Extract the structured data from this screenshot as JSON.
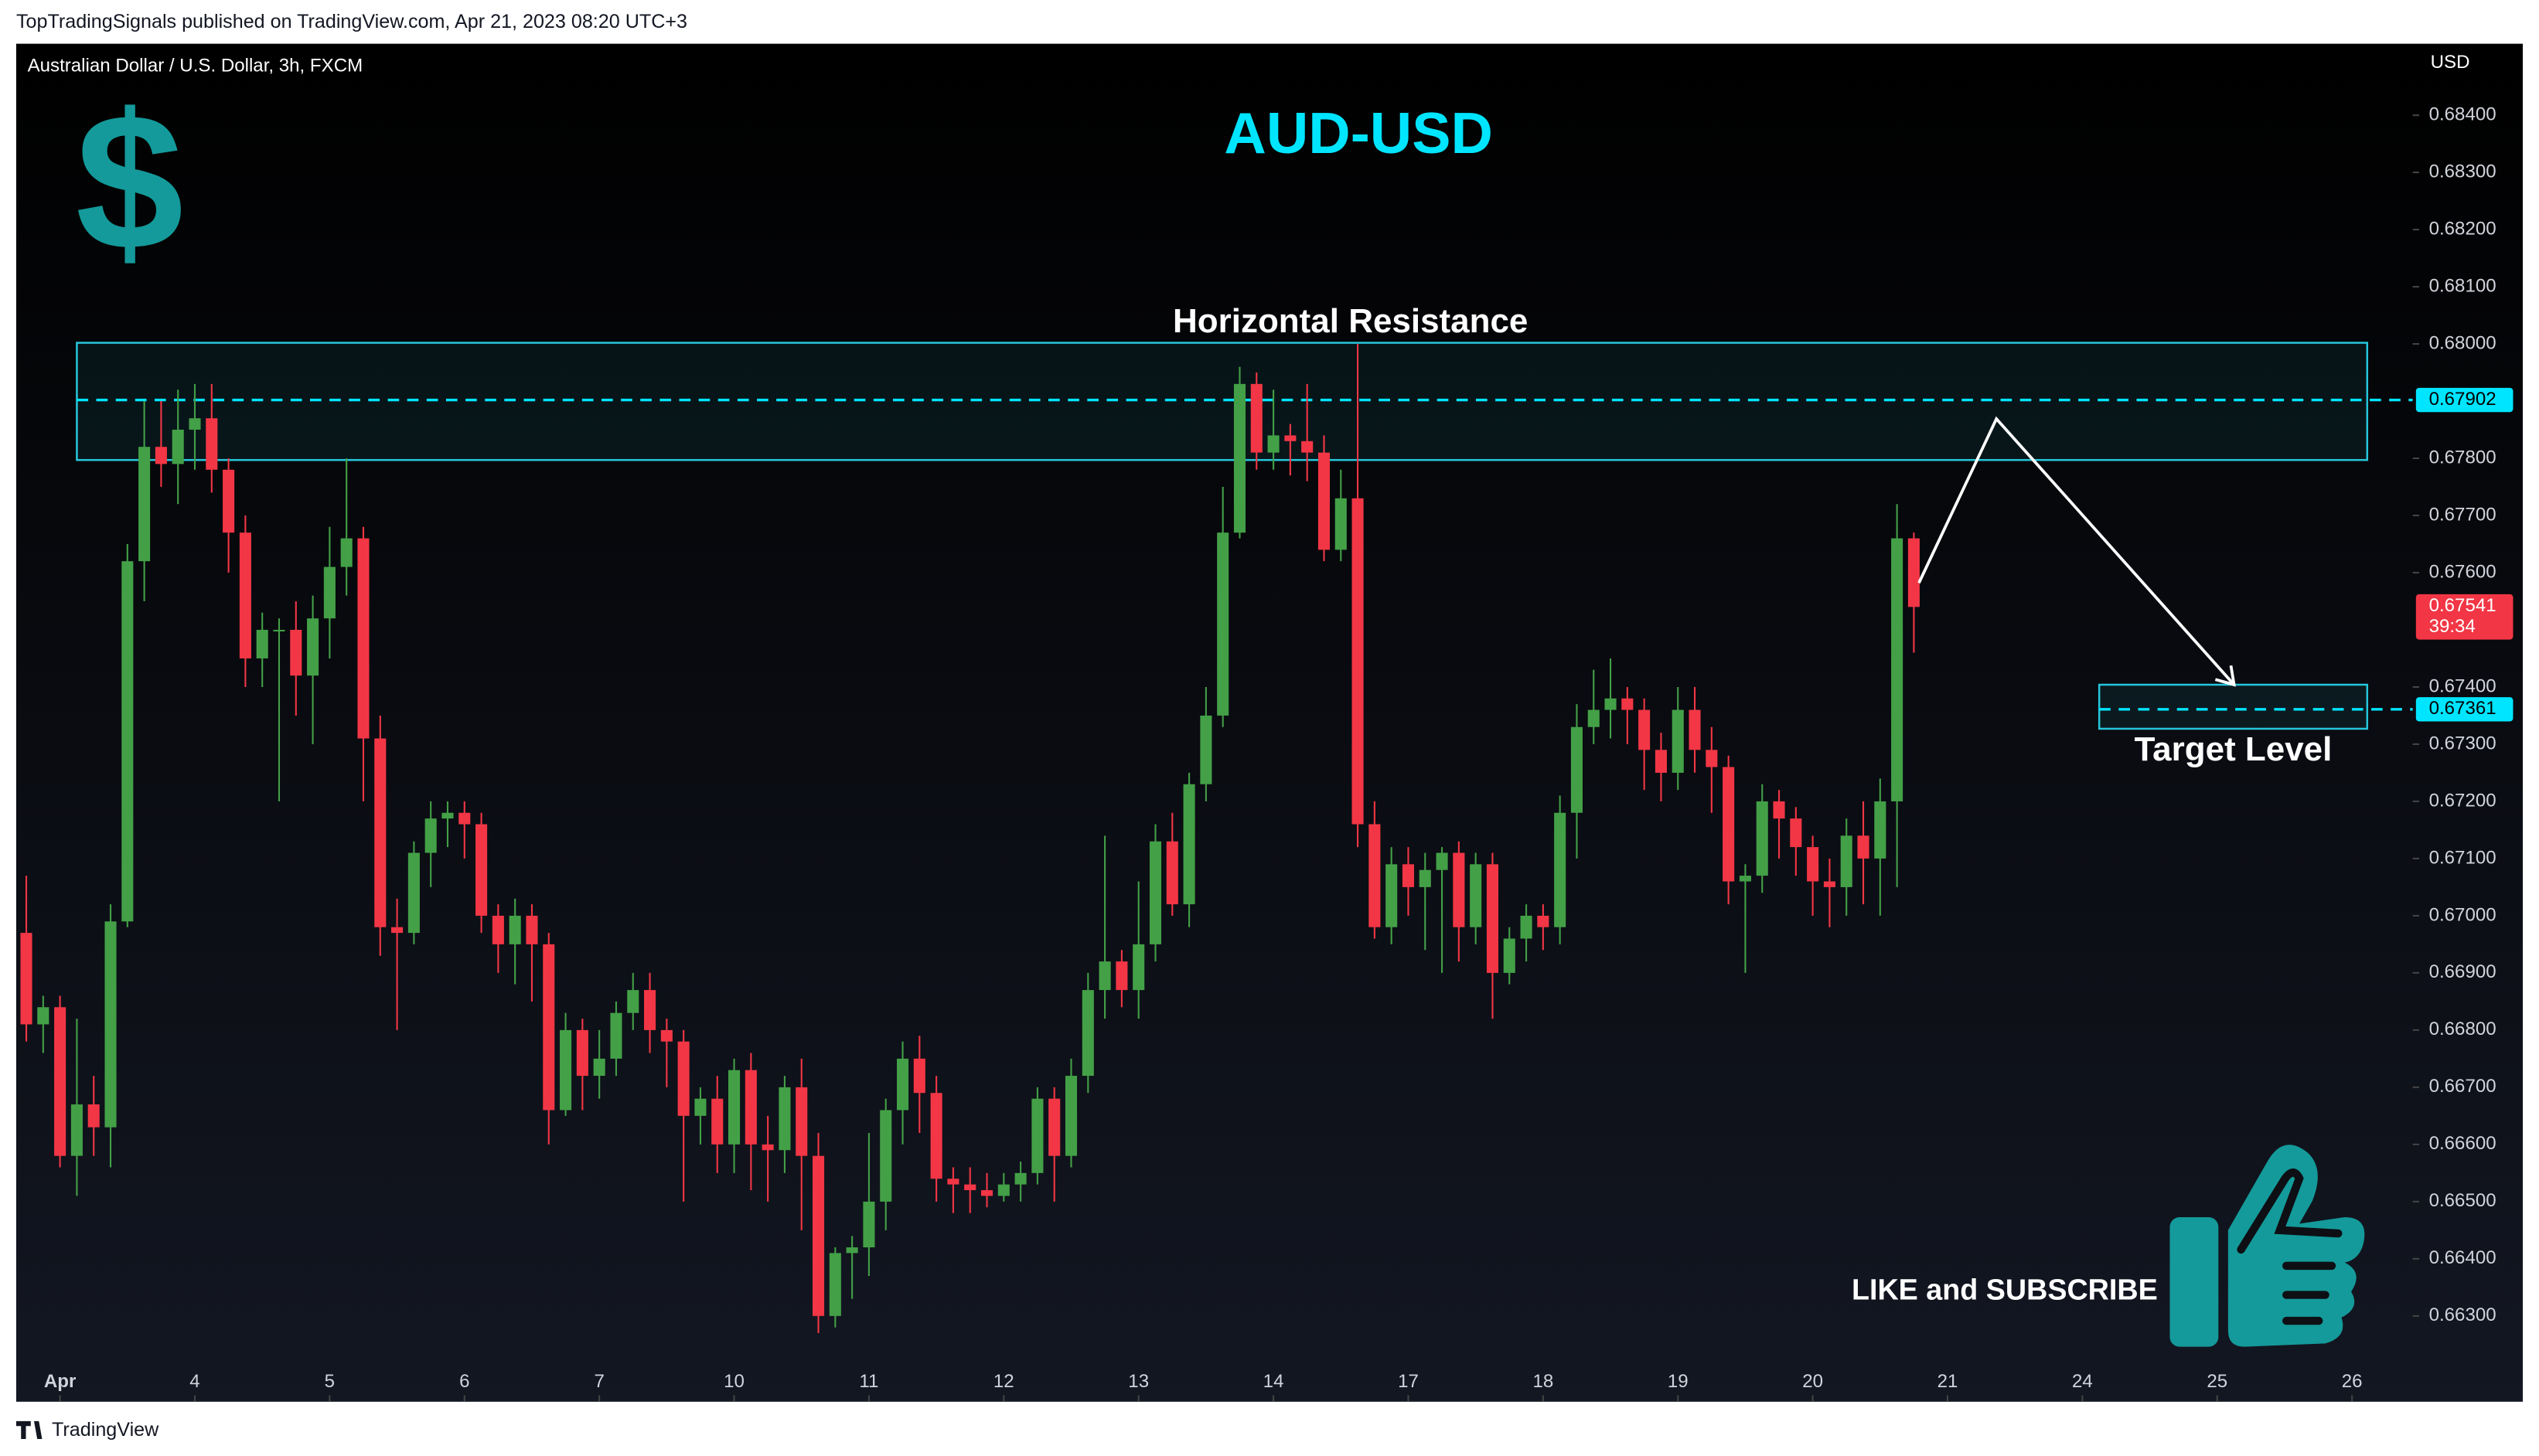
{
  "chart_data": {
    "type": "candlestick",
    "header": "TopTradingSignals published on TradingView.com, Apr 21, 2023 08:20 UTC+3",
    "symbol": "Australian Dollar / U.S. Dollar, 3h, FXCM",
    "currency": "USD",
    "title": "AUD-USD",
    "dollar_icon": "$",
    "footer": "TradingView",
    "up_color": "#43a047",
    "down_color": "#f23645",
    "xlim": [
      -2.6,
      139.6
    ],
    "ylim": [
      0.6615,
      0.68525
    ],
    "xticks": [
      {
        "value": 0,
        "label": "Apr"
      },
      {
        "value": 8,
        "label": "4"
      },
      {
        "value": 16,
        "label": "5"
      },
      {
        "value": 24,
        "label": "6"
      },
      {
        "value": 32,
        "label": "7"
      },
      {
        "value": 40,
        "label": "10"
      },
      {
        "value": 48,
        "label": "11"
      },
      {
        "value": 56,
        "label": "12"
      },
      {
        "value": 64,
        "label": "13"
      },
      {
        "value": 72,
        "label": "14"
      },
      {
        "value": 80,
        "label": "17"
      },
      {
        "value": 88,
        "label": "18"
      },
      {
        "value": 96,
        "label": "19"
      },
      {
        "value": 104,
        "label": "20"
      },
      {
        "value": 112,
        "label": "21"
      },
      {
        "value": 120,
        "label": "24"
      },
      {
        "value": 128,
        "label": "25"
      },
      {
        "value": 136,
        "label": "26"
      }
    ],
    "yticks": [
      {
        "value": 0.663,
        "label": "0.66300"
      },
      {
        "value": 0.664,
        "label": "0.66400"
      },
      {
        "value": 0.665,
        "label": "0.66500"
      },
      {
        "value": 0.666,
        "label": "0.66600"
      },
      {
        "value": 0.667,
        "label": "0.66700"
      },
      {
        "value": 0.668,
        "label": "0.66800"
      },
      {
        "value": 0.669,
        "label": "0.66900"
      },
      {
        "value": 0.67,
        "label": "0.67000"
      },
      {
        "value": 0.671,
        "label": "0.67100"
      },
      {
        "value": 0.672,
        "label": "0.67200"
      },
      {
        "value": 0.673,
        "label": "0.67300"
      },
      {
        "value": 0.674,
        "label": "0.67400"
      },
      {
        "value": 0.676,
        "label": "0.67600"
      },
      {
        "value": 0.677,
        "label": "0.67700"
      },
      {
        "value": 0.678,
        "label": "0.67800"
      },
      {
        "value": 0.68,
        "label": "0.68000"
      },
      {
        "value": 0.681,
        "label": "0.68100"
      },
      {
        "value": 0.682,
        "label": "0.68200"
      },
      {
        "value": 0.683,
        "label": "0.68300"
      },
      {
        "value": 0.684,
        "label": "0.68400"
      }
    ],
    "x": [
      -2,
      -1,
      0,
      1,
      2,
      3,
      4,
      5,
      6,
      7,
      8,
      9,
      10,
      11,
      12,
      13,
      14,
      15,
      16,
      17,
      18,
      19,
      20,
      21,
      22,
      23,
      24,
      25,
      26,
      27,
      28,
      29,
      30,
      31,
      32,
      33,
      34,
      35,
      36,
      37,
      38,
      39,
      40,
      41,
      42,
      43,
      44,
      45,
      46,
      47,
      48,
      49,
      50,
      51,
      52,
      53,
      54,
      55,
      56,
      57,
      58,
      59,
      60,
      61,
      62,
      63,
      64,
      65,
      66,
      67,
      68,
      69,
      70,
      71,
      72,
      73,
      74,
      75,
      76,
      77,
      78,
      79,
      80,
      81,
      82,
      83,
      84,
      85,
      86,
      87,
      88,
      89,
      90,
      91,
      92,
      93,
      94,
      95,
      96,
      97,
      98,
      99,
      100,
      101,
      102,
      103,
      104,
      105,
      106,
      107,
      108,
      109,
      110
    ],
    "open": [
      0.6697,
      0.6681,
      0.6684,
      0.6658,
      0.6667,
      0.6663,
      0.6699,
      0.6762,
      0.6782,
      0.6779,
      0.6785,
      0.6787,
      0.6778,
      0.6767,
      0.6745,
      0.675,
      0.675,
      0.6742,
      0.6752,
      0.6761,
      0.6766,
      0.6731,
      0.6698,
      0.6697,
      0.6711,
      0.6717,
      0.6718,
      0.6716,
      0.67,
      0.6695,
      0.67,
      0.6695,
      0.6666,
      0.668,
      0.6672,
      0.6675,
      0.6683,
      0.6687,
      0.668,
      0.6678,
      0.6665,
      0.6668,
      0.666,
      0.6673,
      0.666,
      0.6659,
      0.667,
      0.6658,
      0.663,
      0.6641,
      0.6642,
      0.665,
      0.6666,
      0.6675,
      0.6669,
      0.6654,
      0.6653,
      0.6652,
      0.6651,
      0.6653,
      0.6655,
      0.6668,
      0.6658,
      0.6672,
      0.6687,
      0.6692,
      0.6687,
      0.6695,
      0.6713,
      0.6702,
      0.6723,
      0.6735,
      0.6767,
      0.6793,
      0.6781,
      0.6784,
      0.6783,
      0.6781,
      0.6764,
      0.6773,
      0.6716,
      0.6698,
      0.6709,
      0.6705,
      0.6708,
      0.6711,
      0.6698,
      0.6709,
      0.669,
      0.6696,
      0.67,
      0.6698,
      0.6718,
      0.6733,
      0.6736,
      0.6738,
      0.6736,
      0.6729,
      0.6725,
      0.6736,
      0.6729,
      0.6726,
      0.6706,
      0.6707,
      0.672,
      0.6717,
      0.6712,
      0.6706,
      0.6705,
      0.6714,
      0.671,
      0.672,
      0.6766
    ],
    "high": [
      0.6707,
      0.6686,
      0.6686,
      0.6682,
      0.6672,
      0.6702,
      0.6765,
      0.679,
      0.679,
      0.6792,
      0.6793,
      0.6793,
      0.678,
      0.677,
      0.6753,
      0.6752,
      0.6755,
      0.6756,
      0.6768,
      0.678,
      0.6768,
      0.6735,
      0.6703,
      0.6713,
      0.672,
      0.672,
      0.672,
      0.6718,
      0.6702,
      0.6703,
      0.6702,
      0.6697,
      0.6683,
      0.6682,
      0.668,
      0.6685,
      0.669,
      0.669,
      0.6682,
      0.668,
      0.667,
      0.6672,
      0.6675,
      0.6676,
      0.6665,
      0.6672,
      0.6675,
      0.6662,
      0.6642,
      0.6644,
      0.6662,
      0.6668,
      0.6678,
      0.6679,
      0.6672,
      0.6656,
      0.6656,
      0.6655,
      0.6655,
      0.6657,
      0.667,
      0.667,
      0.6675,
      0.669,
      0.6714,
      0.6694,
      0.6706,
      0.6716,
      0.6718,
      0.6725,
      0.674,
      0.6775,
      0.6796,
      0.6795,
      0.6792,
      0.6786,
      0.6793,
      0.6784,
      0.6778,
      0.68,
      0.672,
      0.6712,
      0.6712,
      0.6711,
      0.6712,
      0.6713,
      0.6711,
      0.6711,
      0.6698,
      0.6702,
      0.6702,
      0.6721,
      0.6737,
      0.6743,
      0.6745,
      0.674,
      0.6738,
      0.6732,
      0.674,
      0.674,
      0.6733,
      0.6728,
      0.6709,
      0.6723,
      0.6722,
      0.6719,
      0.6714,
      0.671,
      0.6717,
      0.672,
      0.6724,
      0.6772,
      0.6767
    ],
    "low": [
      0.6678,
      0.6676,
      0.6656,
      0.6651,
      0.6658,
      0.6656,
      0.6698,
      0.6755,
      0.6775,
      0.6772,
      0.6778,
      0.6774,
      0.676,
      0.674,
      0.674,
      0.672,
      0.6735,
      0.673,
      0.6745,
      0.6756,
      0.672,
      0.6693,
      0.668,
      0.6695,
      0.6705,
      0.6712,
      0.671,
      0.6697,
      0.669,
      0.6688,
      0.6685,
      0.666,
      0.6665,
      0.6666,
      0.6668,
      0.6672,
      0.668,
      0.6676,
      0.667,
      0.665,
      0.666,
      0.6655,
      0.6655,
      0.6652,
      0.665,
      0.6655,
      0.6645,
      0.6627,
      0.6628,
      0.6633,
      0.6637,
      0.6645,
      0.666,
      0.6662,
      0.665,
      0.6648,
      0.6648,
      0.6649,
      0.665,
      0.665,
      0.6653,
      0.665,
      0.6656,
      0.6669,
      0.6682,
      0.6684,
      0.6682,
      0.6692,
      0.67,
      0.6698,
      0.672,
      0.6733,
      0.6766,
      0.6778,
      0.6778,
      0.6777,
      0.6776,
      0.6762,
      0.6762,
      0.6712,
      0.6696,
      0.6695,
      0.67,
      0.6694,
      0.669,
      0.6692,
      0.6695,
      0.6682,
      0.6688,
      0.6692,
      0.6694,
      0.6695,
      0.671,
      0.673,
      0.6731,
      0.673,
      0.6722,
      0.672,
      0.6722,
      0.6725,
      0.6718,
      0.6702,
      0.669,
      0.6704,
      0.671,
      0.6707,
      0.67,
      0.6698,
      0.67,
      0.6702,
      0.67,
      0.6705,
      0.6746
    ],
    "close": [
      0.6681,
      0.6684,
      0.6658,
      0.6667,
      0.6663,
      0.6699,
      0.6762,
      0.6782,
      0.6779,
      0.6785,
      0.6787,
      0.6778,
      0.6767,
      0.6745,
      0.675,
      0.675,
      0.6742,
      0.6752,
      0.6761,
      0.6766,
      0.6731,
      0.6698,
      0.6697,
      0.6711,
      0.6717,
      0.6718,
      0.6716,
      0.67,
      0.6695,
      0.67,
      0.6695,
      0.6666,
      0.668,
      0.6672,
      0.6675,
      0.6683,
      0.6687,
      0.668,
      0.6678,
      0.6665,
      0.6668,
      0.666,
      0.6673,
      0.666,
      0.6659,
      0.667,
      0.6658,
      0.663,
      0.6641,
      0.6642,
      0.665,
      0.6666,
      0.6675,
      0.6669,
      0.6654,
      0.6653,
      0.6652,
      0.6651,
      0.6653,
      0.6655,
      0.6668,
      0.6658,
      0.6672,
      0.6687,
      0.6692,
      0.6687,
      0.6695,
      0.6713,
      0.6702,
      0.6723,
      0.6735,
      0.6767,
      0.6793,
      0.6781,
      0.6784,
      0.6783,
      0.6781,
      0.6764,
      0.6773,
      0.6716,
      0.6698,
      0.6709,
      0.6705,
      0.6708,
      0.6711,
      0.6698,
      0.6709,
      0.669,
      0.6696,
      0.67,
      0.6698,
      0.6718,
      0.6733,
      0.6736,
      0.6738,
      0.6736,
      0.6729,
      0.6725,
      0.6736,
      0.6729,
      0.6726,
      0.6706,
      0.6707,
      0.672,
      0.6717,
      0.6712,
      0.6706,
      0.6705,
      0.6714,
      0.671,
      0.672,
      0.6766,
      0.6754
    ],
    "annotations": {
      "resistance": {
        "label": "Horizontal Resistance",
        "low": 0.67797,
        "high": 0.68002,
        "x": [
          1,
          136.9
        ],
        "color": "#26c6da"
      },
      "resistance_line": {
        "value": 0.67902,
        "color": "#00e5ff"
      },
      "target": {
        "label": "Target Level",
        "low": 0.67327,
        "high": 0.67404,
        "x": [
          121,
          136.9
        ],
        "color": "#26c6da"
      },
      "target_line": {
        "value": 0.67361,
        "color": "#00e5ff"
      },
      "last_price": {
        "value": 0.67541,
        "countdown": "39:34",
        "color": "#f23645"
      },
      "arrow": {
        "x": [
          110.3,
          114.9,
          129.0
        ],
        "y": [
          0.67582,
          0.67869,
          0.67404
        ],
        "color": "#ffffff"
      },
      "cta": "LIKE and SUBSCRIBE"
    }
  }
}
